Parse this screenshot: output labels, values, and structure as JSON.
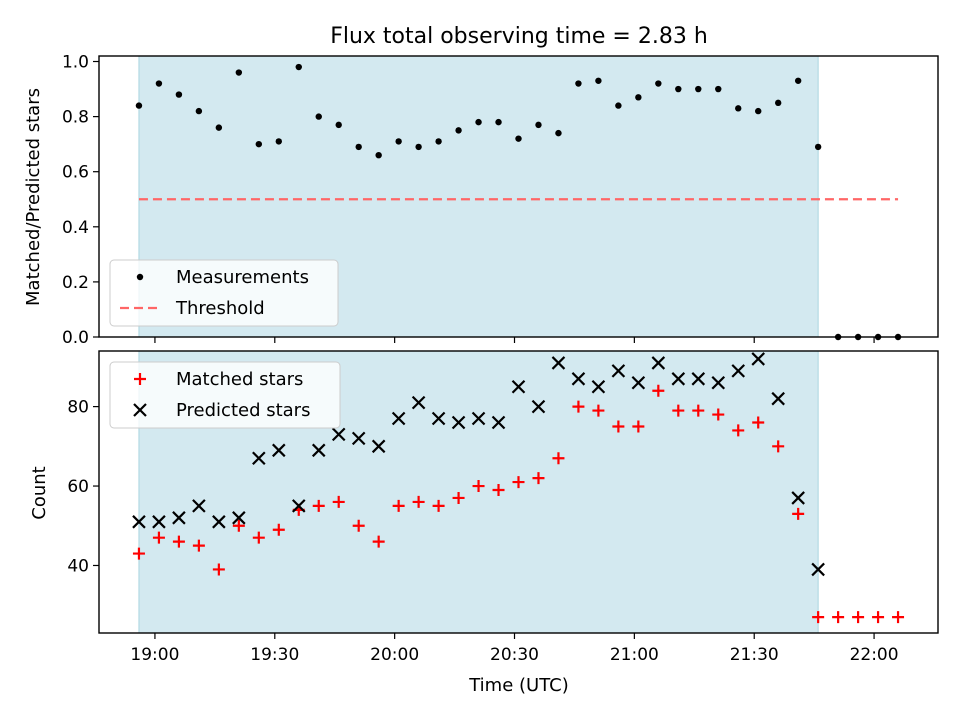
{
  "chart_data": [
    {
      "type": "scatter",
      "title": "Flux total observing time = 2.83 h",
      "xlabel": "",
      "ylabel": "Matched/Predicted stars",
      "ylim": [
        0.0,
        1.02
      ],
      "yticks": [
        "0.0",
        "0.2",
        "0.4",
        "0.6",
        "0.8",
        "1.0"
      ],
      "ytick_values": [
        0.0,
        0.2,
        0.4,
        0.6,
        0.8,
        1.0
      ],
      "shaded_interval": [
        "18:56",
        "21:46"
      ],
      "shade_color": "#d3e9f0",
      "legend_position": "lower-left",
      "threshold": {
        "name": "Threshold",
        "value": 0.5,
        "x": [
          "18:56",
          "22:06"
        ],
        "color": "#ff6666"
      },
      "series": [
        {
          "name": "Measurements",
          "marker": "dot",
          "color": "#000000",
          "x": [
            "18:56",
            "19:01",
            "19:06",
            "19:11",
            "19:16",
            "19:21",
            "19:26",
            "19:31",
            "19:36",
            "19:41",
            "19:46",
            "19:51",
            "19:56",
            "20:01",
            "20:06",
            "20:11",
            "20:16",
            "20:21",
            "20:26",
            "20:31",
            "20:36",
            "20:41",
            "20:46",
            "20:51",
            "20:56",
            "21:01",
            "21:06",
            "21:11",
            "21:16",
            "21:21",
            "21:26",
            "21:31",
            "21:36",
            "21:41",
            "21:46",
            "21:51",
            "21:56",
            "22:01",
            "22:06"
          ],
          "y": [
            0.84,
            0.92,
            0.88,
            0.82,
            0.76,
            0.96,
            0.7,
            0.71,
            0.98,
            0.8,
            0.77,
            0.69,
            0.66,
            0.71,
            0.69,
            0.71,
            0.75,
            0.78,
            0.78,
            0.72,
            0.77,
            0.74,
            0.92,
            0.93,
            0.84,
            0.87,
            0.92,
            0.9,
            0.9,
            0.9,
            0.83,
            0.82,
            0.85,
            0.93,
            0.69,
            0.0,
            0.0,
            0.0,
            0.0
          ]
        }
      ]
    },
    {
      "type": "scatter",
      "title": "",
      "xlabel": "Time (UTC)",
      "ylabel": "Count",
      "ylim": [
        23,
        94
      ],
      "yticks": [
        "40",
        "60",
        "80"
      ],
      "ytick_values": [
        40,
        60,
        80
      ],
      "xlim": [
        "18:46",
        "22:16"
      ],
      "xticks": [
        "19:00",
        "19:30",
        "20:00",
        "20:30",
        "21:00",
        "21:30",
        "22:00"
      ],
      "shaded_interval": [
        "18:56",
        "21:46"
      ],
      "shade_color": "#d3e9f0",
      "legend_position": "top-left",
      "series": [
        {
          "name": "Matched stars",
          "marker": "plus",
          "color": "#ff0000",
          "x": [
            "18:56",
            "19:01",
            "19:06",
            "19:11",
            "19:16",
            "19:21",
            "19:26",
            "19:31",
            "19:36",
            "19:41",
            "19:46",
            "19:51",
            "19:56",
            "20:01",
            "20:06",
            "20:11",
            "20:16",
            "20:21",
            "20:26",
            "20:31",
            "20:36",
            "20:41",
            "20:46",
            "20:51",
            "20:56",
            "21:01",
            "21:06",
            "21:11",
            "21:16",
            "21:21",
            "21:26",
            "21:31",
            "21:36",
            "21:41",
            "21:46",
            "21:51",
            "21:56",
            "22:01",
            "22:06"
          ],
          "y": [
            43,
            47,
            46,
            45,
            39,
            50,
            47,
            49,
            54,
            55,
            56,
            50,
            46,
            55,
            56,
            55,
            57,
            60,
            59,
            61,
            62,
            67,
            80,
            79,
            75,
            75,
            84,
            79,
            79,
            78,
            74,
            76,
            70,
            53,
            27,
            27,
            27,
            27,
            27
          ]
        },
        {
          "name": "Predicted stars",
          "marker": "x",
          "color": "#000000",
          "x": [
            "18:56",
            "19:01",
            "19:06",
            "19:11",
            "19:16",
            "19:21",
            "19:26",
            "19:31",
            "19:36",
            "19:41",
            "19:46",
            "19:51",
            "19:56",
            "20:01",
            "20:06",
            "20:11",
            "20:16",
            "20:21",
            "20:26",
            "20:31",
            "20:36",
            "20:41",
            "20:46",
            "20:51",
            "20:56",
            "21:01",
            "21:06",
            "21:11",
            "21:16",
            "21:21",
            "21:26",
            "21:31",
            "21:36",
            "21:41",
            "21:46"
          ],
          "y": [
            51,
            51,
            52,
            55,
            51,
            52,
            67,
            69,
            55,
            69,
            73,
            72,
            70,
            77,
            81,
            77,
            76,
            77,
            76,
            85,
            80,
            91,
            87,
            85,
            89,
            86,
            91,
            87,
            87,
            86,
            89,
            92,
            82,
            57,
            39
          ]
        }
      ]
    }
  ]
}
